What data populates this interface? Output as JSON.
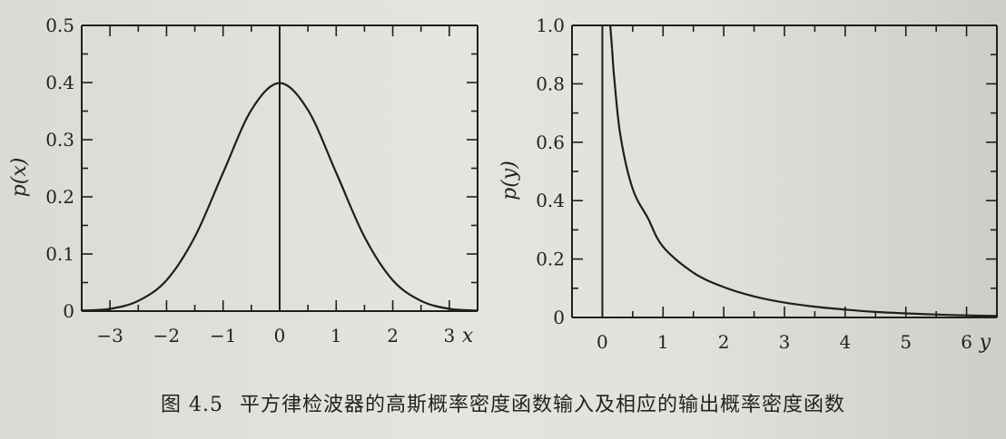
{
  "chart_data": [
    {
      "type": "line",
      "title": "",
      "xlabel": "x",
      "ylabel": "p(x)",
      "xlim": [
        -3.5,
        3.5
      ],
      "ylim": [
        0,
        0.5
      ],
      "xticks": [
        -3,
        -2,
        -1,
        0,
        1,
        2,
        3
      ],
      "xtick_labels": [
        "−3",
        "−2",
        "−1",
        "0",
        "1",
        "2",
        "3"
      ],
      "yticks": [
        0,
        0.1,
        0.2,
        0.3,
        0.4,
        0.5
      ],
      "ytick_labels": [
        "0",
        "0.1",
        "0.2",
        "0.3",
        "0.4",
        "0.5"
      ],
      "series": [
        {
          "x": [
            -3.5,
            -3,
            -2.5,
            -2,
            -1.5,
            -1,
            -0.5,
            0,
            0.5,
            1,
            1.5,
            2,
            2.5,
            3,
            3.5
          ],
          "y": [
            0.001,
            0.004,
            0.018,
            0.054,
            0.13,
            0.242,
            0.352,
            0.399,
            0.352,
            0.242,
            0.13,
            0.054,
            0.018,
            0.004,
            0.001
          ]
        }
      ]
    },
    {
      "type": "line",
      "title": "",
      "xlabel": "y",
      "ylabel": "p(y)",
      "xlim": [
        -0.5,
        6.5
      ],
      "ylim": [
        0,
        1.0
      ],
      "xticks": [
        0,
        1,
        2,
        3,
        4,
        5,
        6
      ],
      "xtick_labels": [
        "0",
        "1",
        "2",
        "3",
        "4",
        "5",
        "6"
      ],
      "yticks": [
        0,
        0.2,
        0.4,
        0.6,
        0.8,
        1.0
      ],
      "ytick_labels": [
        "0",
        "0.2",
        "0.4",
        "0.6",
        "0.8",
        "1.0"
      ],
      "series": [
        {
          "x": [
            0.16,
            0.2,
            0.3,
            0.5,
            0.75,
            1,
            1.5,
            2,
            2.5,
            3,
            3.5,
            4,
            4.5,
            5,
            5.5,
            6,
            6.5
          ],
          "y": [
            0.92,
            0.81,
            0.62,
            0.44,
            0.34,
            0.242,
            0.153,
            0.104,
            0.072,
            0.051,
            0.037,
            0.027,
            0.019,
            0.014,
            0.01,
            0.007,
            0.005
          ]
        }
      ]
    }
  ],
  "caption": {
    "label": "图 4.5",
    "text": "平方律检波器的高斯概率密度函数输入及相应的输出概率密度函数"
  }
}
